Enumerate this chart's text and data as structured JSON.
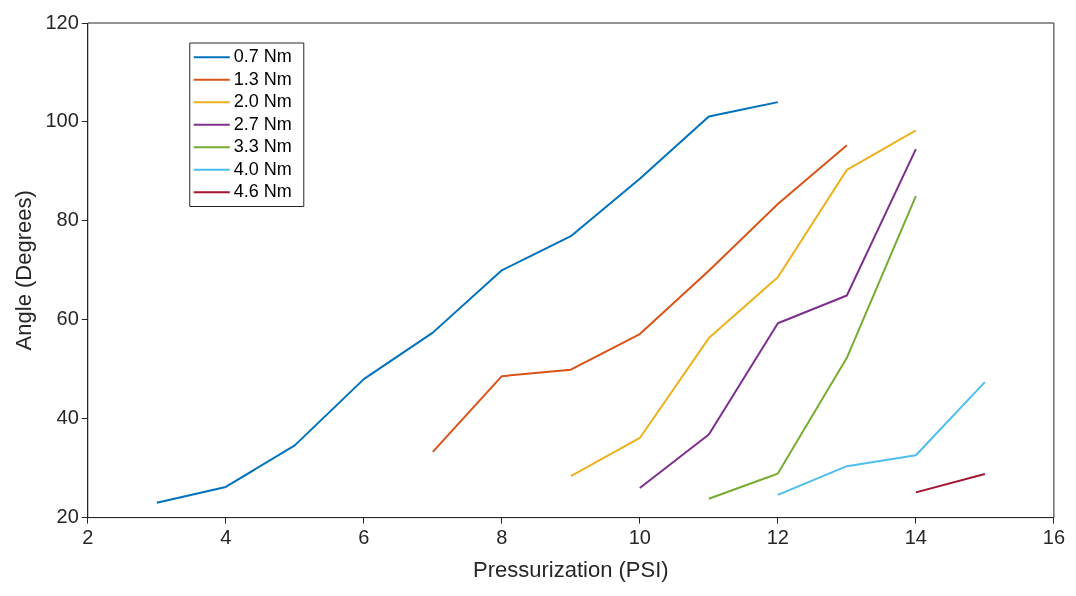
{
  "chart_data": {
    "type": "line",
    "xlabel": "Pressurization (PSI)",
    "ylabel": "Angle (Degrees)",
    "xlim": [
      2,
      16
    ],
    "xticks": [
      2,
      4,
      6,
      8,
      10,
      12,
      14,
      16
    ],
    "ylim": [
      20,
      120
    ],
    "yticks": [
      20,
      40,
      60,
      80,
      100,
      120
    ],
    "grid": false,
    "legend": "top left",
    "marker": "none",
    "line_style": "solid",
    "series": [
      {
        "name": "0.7 Nm",
        "color": "#0072bd",
        "x": [
          3,
          4,
          5,
          6,
          7,
          8,
          9,
          10,
          11,
          12
        ],
        "values": [
          23.0,
          26.2,
          34.6,
          48.0,
          57.4,
          70.0,
          76.9,
          88.5,
          101.1,
          104.0
        ]
      },
      {
        "name": "1.3 Nm",
        "color": "#d95319",
        "x": [
          7,
          8,
          9,
          10,
          11,
          12,
          13
        ],
        "values": [
          33.3,
          48.6,
          49.9,
          57.1,
          69.9,
          83.4,
          95.3
        ]
      },
      {
        "name": "2.0 Nm",
        "color": "#edb120",
        "x": [
          9,
          10,
          11,
          12,
          13,
          14
        ],
        "values": [
          28.4,
          36.1,
          56.3,
          68.6,
          90.3,
          98.3
        ]
      },
      {
        "name": "2.7 Nm",
        "color": "#7e2f8e",
        "x": [
          10,
          11,
          12,
          13,
          14
        ],
        "values": [
          26.0,
          36.8,
          59.3,
          64.9,
          94.5
        ]
      },
      {
        "name": "3.3 Nm",
        "color": "#77ac30",
        "x": [
          11,
          12,
          13,
          14
        ],
        "values": [
          23.8,
          28.9,
          52.3,
          85.0
        ]
      },
      {
        "name": "4.0 Nm",
        "color": "#4dbeee",
        "x": [
          12,
          13,
          14,
          15
        ],
        "values": [
          24.6,
          30.4,
          32.6,
          47.4
        ]
      },
      {
        "name": "4.6 Nm",
        "color": "#a2142f",
        "x": [
          14,
          15
        ],
        "values": [
          25.1,
          28.8
        ]
      }
    ]
  }
}
